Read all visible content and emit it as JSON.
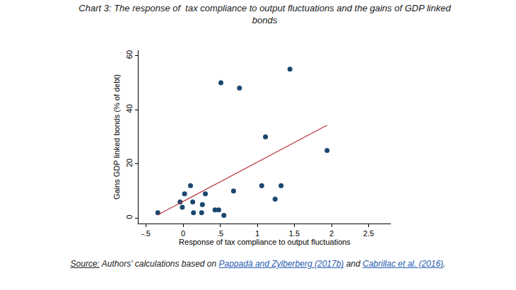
{
  "chart_data": {
    "type": "scatter",
    "title": "Chart 3: The response of  tax compliance to output fluctuations and the gains of GDP linked\nbonds",
    "x_label": "Response of tax compliance to output fluctuations",
    "y_label": "Gains GDP linked bonds (% of debt)",
    "xlim": [
      -0.6,
      2.8
    ],
    "xticks": [
      {
        "value": -0.5,
        "label": "-.5"
      },
      0,
      {
        "value": 0.5,
        "label": ".5"
      },
      1,
      1.5,
      2,
      2.5
    ],
    "ylim": [
      -2,
      62
    ],
    "yticks": [
      0,
      20,
      40,
      60
    ],
    "grid": false,
    "series": [
      {
        "type": "scatter",
        "color": "#1a476f",
        "marker": "circle",
        "x": [
          -0.34,
          -0.04,
          -0.01,
          0.02,
          0.1,
          0.13,
          0.14,
          0.26,
          0.25,
          0.3,
          0.43,
          0.48,
          0.51,
          0.55,
          0.68,
          0.76,
          1.06,
          1.11,
          1.24,
          1.32,
          1.44,
          1.94
        ],
        "values": [
          2,
          6,
          4,
          9,
          12,
          6,
          2,
          5,
          2,
          9,
          3,
          3,
          50,
          1,
          10,
          48,
          12,
          30,
          7,
          12,
          55,
          25
        ]
      },
      {
        "type": "line",
        "color": "#b5333a",
        "line_style": "solid",
        "x": [
          -0.34,
          1.94
        ],
        "values": [
          1.2,
          34.3
        ]
      }
    ],
    "source": [
      {
        "text": "Source:",
        "underline": true
      },
      {
        "text": " Authors' calculations based on "
      },
      {
        "text": "Pappadà and Zylberberg (2017b)",
        "link": true
      },
      {
        "text": " and "
      },
      {
        "text": "Cabrillac et al. (2016)",
        "link": true
      },
      {
        "text": "."
      }
    ]
  }
}
